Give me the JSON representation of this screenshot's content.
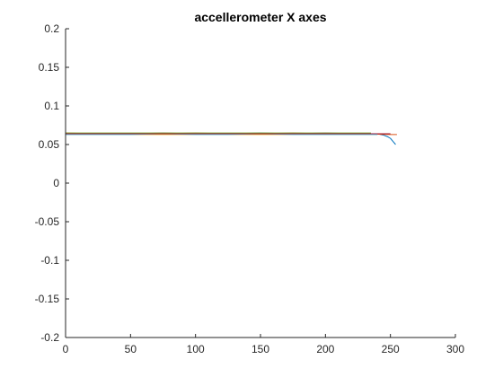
{
  "chart_data": {
    "type": "line",
    "title": "accellerometer X axes",
    "xlabel": "",
    "ylabel": "",
    "xlim": [
      0,
      300
    ],
    "ylim": [
      -0.2,
      0.2
    ],
    "x_ticks": [
      0,
      50,
      100,
      150,
      200,
      250,
      300
    ],
    "x_tick_labels": [
      "0",
      "50",
      "100",
      "150",
      "200",
      "250",
      "300"
    ],
    "y_ticks": [
      -0.2,
      -0.15,
      -0.1,
      -0.05,
      0,
      0.05,
      0.1,
      0.15,
      0.2
    ],
    "y_tick_labels": [
      "-0.2",
      "-0.15",
      "-0.1",
      "-0.05",
      "0",
      "0.05",
      "0.1",
      "0.15",
      "0.2"
    ],
    "grid": false,
    "legend": "none",
    "series": [
      {
        "color": "#0072BD",
        "x": [
          0,
          25,
          50,
          75,
          100,
          125,
          150,
          175,
          200,
          225,
          240,
          245,
          248,
          250,
          252,
          254
        ],
        "y": [
          0.064,
          0.064,
          0.064,
          0.064,
          0.064,
          0.064,
          0.065,
          0.064,
          0.064,
          0.064,
          0.064,
          0.062,
          0.06,
          0.058,
          0.054,
          0.05
        ]
      },
      {
        "color": "#D95319",
        "x": [
          0,
          25,
          50,
          75,
          100,
          125,
          150,
          175,
          200,
          225,
          250,
          255
        ],
        "y": [
          0.065,
          0.064,
          0.064,
          0.064,
          0.065,
          0.064,
          0.064,
          0.065,
          0.064,
          0.064,
          0.063,
          0.063
        ]
      },
      {
        "color": "#EDB120",
        "x": [
          0,
          25,
          50,
          75,
          100,
          125,
          150,
          175,
          200,
          225,
          240
        ],
        "y": [
          0.063,
          0.063,
          0.063,
          0.063,
          0.063,
          0.063,
          0.063,
          0.063,
          0.063,
          0.063,
          0.063
        ]
      },
      {
        "color": "#7E2F8E",
        "x": [
          0,
          25,
          50,
          75,
          100,
          125,
          150,
          175,
          200,
          225,
          245
        ],
        "y": [
          0.064,
          0.064,
          0.064,
          0.065,
          0.064,
          0.064,
          0.064,
          0.064,
          0.065,
          0.064,
          0.064
        ]
      },
      {
        "color": "#77AC30",
        "x": [
          0,
          25,
          50,
          75,
          100,
          125,
          150,
          175,
          200,
          225,
          235
        ],
        "y": [
          0.065,
          0.065,
          0.065,
          0.065,
          0.065,
          0.065,
          0.065,
          0.065,
          0.065,
          0.065,
          0.065
        ]
      },
      {
        "color": "#4DBEEE",
        "x": [
          0,
          25,
          50,
          75,
          100,
          125,
          150,
          175,
          200,
          225,
          240
        ],
        "y": [
          0.063,
          0.063,
          0.063,
          0.064,
          0.063,
          0.063,
          0.064,
          0.063,
          0.063,
          0.063,
          0.063
        ]
      },
      {
        "color": "#A2142F",
        "x": [
          0,
          25,
          50,
          75,
          100,
          125,
          150,
          175,
          200,
          225,
          250
        ],
        "y": [
          0.064,
          0.064,
          0.064,
          0.064,
          0.064,
          0.064,
          0.064,
          0.064,
          0.064,
          0.064,
          0.064
        ]
      }
    ]
  }
}
